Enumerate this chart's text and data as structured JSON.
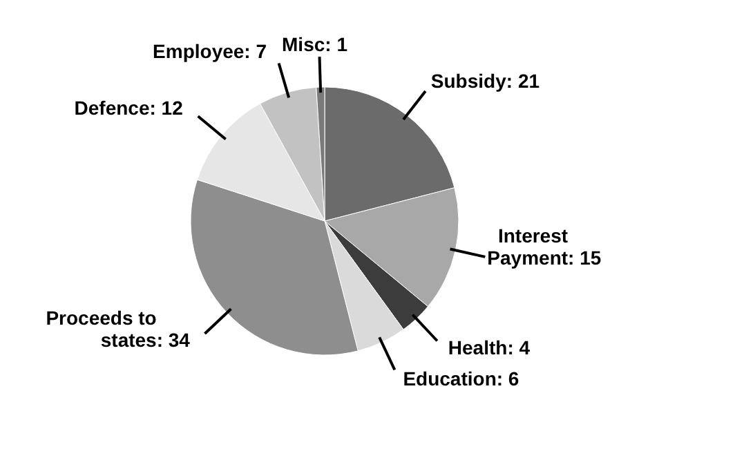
{
  "chart_data": {
    "type": "pie",
    "categories": [
      "Subsidy",
      "Interest Payment",
      "Health",
      "Education",
      "Proceeds to states",
      "Defence",
      "Employee",
      "Misc"
    ],
    "values": [
      21,
      15,
      4,
      6,
      34,
      12,
      7,
      1
    ],
    "colors": [
      "#6b6b6b",
      "#a8a8a8",
      "#3c3c3c",
      "#dadada",
      "#8e8e8e",
      "#e6e6e6",
      "#c2c2c2",
      "#7a7a7a"
    ],
    "value_labels": [
      ": 21",
      ": 15",
      ": 4",
      ": 6",
      ": 34",
      ": 12",
      ": 7",
      ": 1"
    ]
  }
}
